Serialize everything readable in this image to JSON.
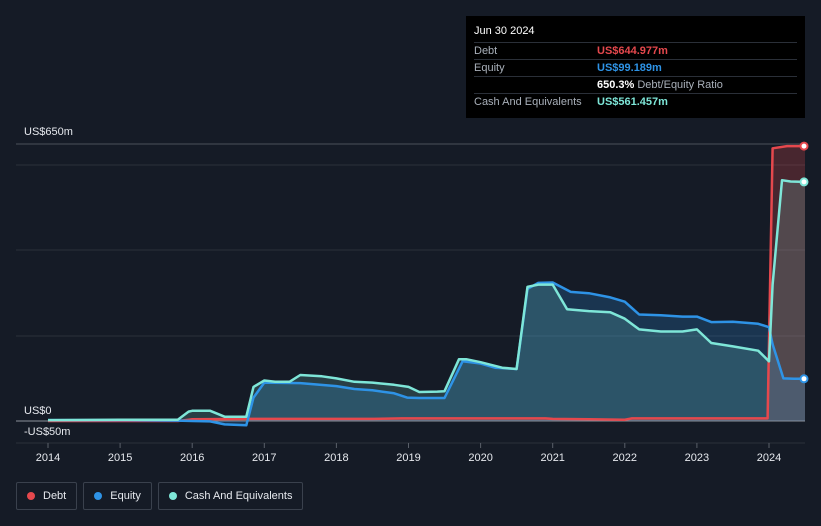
{
  "chart_data": {
    "type": "area",
    "title": "",
    "xlabel": "",
    "ylabel": "",
    "y_labels": {
      "top": "US$650m",
      "zero": "US$0",
      "bottom": "-US$50m"
    },
    "ylim": [
      -50,
      650
    ],
    "xlim": [
      2014.0,
      2024.5
    ],
    "x_ticks": [
      "2014",
      "2015",
      "2016",
      "2017",
      "2018",
      "2019",
      "2020",
      "2021",
      "2022",
      "2023",
      "2024"
    ],
    "grid": true,
    "series": [
      {
        "name": "Debt",
        "color": "#e5484d",
        "points": [
          [
            2014.0,
            0
          ],
          [
            2015.8,
            0
          ],
          [
            2015.95,
            3
          ],
          [
            2016.0,
            4
          ],
          [
            2016.8,
            5
          ],
          [
            2017.0,
            5
          ],
          [
            2018.0,
            5
          ],
          [
            2018.5,
            5
          ],
          [
            2018.9,
            6
          ],
          [
            2019.0,
            6
          ],
          [
            2020.0,
            6
          ],
          [
            2020.9,
            6
          ],
          [
            2021.0,
            5
          ],
          [
            2021.5,
            4
          ],
          [
            2022.0,
            3
          ],
          [
            2022.1,
            6
          ],
          [
            2022.5,
            6
          ],
          [
            2023.0,
            6
          ],
          [
            2023.5,
            6
          ],
          [
            2023.98,
            6
          ],
          [
            2024.05,
            640
          ],
          [
            2024.25,
            645
          ],
          [
            2024.5,
            645
          ]
        ]
      },
      {
        "name": "Equity",
        "color": "#2e93e6",
        "points": [
          [
            2014.0,
            2
          ],
          [
            2015.0,
            2
          ],
          [
            2015.8,
            1
          ],
          [
            2016.0,
            0
          ],
          [
            2016.25,
            -1
          ],
          [
            2016.45,
            -8
          ],
          [
            2016.75,
            -10
          ],
          [
            2016.85,
            55
          ],
          [
            2017.0,
            90
          ],
          [
            2017.5,
            89
          ],
          [
            2018.0,
            82
          ],
          [
            2018.25,
            75
          ],
          [
            2018.5,
            72
          ],
          [
            2018.8,
            65
          ],
          [
            2018.98,
            55
          ],
          [
            2019.15,
            54
          ],
          [
            2019.5,
            54
          ],
          [
            2019.75,
            140
          ],
          [
            2020.0,
            135
          ],
          [
            2020.2,
            125
          ],
          [
            2020.5,
            122
          ],
          [
            2020.65,
            310
          ],
          [
            2020.8,
            324
          ],
          [
            2021.0,
            325
          ],
          [
            2021.25,
            303
          ],
          [
            2021.5,
            300
          ],
          [
            2021.8,
            290
          ],
          [
            2022.0,
            280
          ],
          [
            2022.2,
            250
          ],
          [
            2022.5,
            248
          ],
          [
            2022.8,
            245
          ],
          [
            2023.0,
            245
          ],
          [
            2023.2,
            232
          ],
          [
            2023.5,
            233
          ],
          [
            2023.85,
            228
          ],
          [
            2024.0,
            220
          ],
          [
            2024.05,
            180
          ],
          [
            2024.2,
            100
          ],
          [
            2024.35,
            99
          ],
          [
            2024.5,
            99
          ]
        ]
      },
      {
        "name": "Cash And Equivalents",
        "color": "#7ee6d8",
        "points": [
          [
            2014.0,
            2
          ],
          [
            2015.0,
            3
          ],
          [
            2015.8,
            3
          ],
          [
            2015.95,
            22
          ],
          [
            2016.0,
            24
          ],
          [
            2016.25,
            24
          ],
          [
            2016.45,
            10
          ],
          [
            2016.75,
            10
          ],
          [
            2016.85,
            80
          ],
          [
            2017.0,
            95
          ],
          [
            2017.15,
            92
          ],
          [
            2017.35,
            92
          ],
          [
            2017.5,
            108
          ],
          [
            2017.8,
            105
          ],
          [
            2018.0,
            100
          ],
          [
            2018.25,
            92
          ],
          [
            2018.5,
            90
          ],
          [
            2018.8,
            85
          ],
          [
            2019.0,
            80
          ],
          [
            2019.15,
            68
          ],
          [
            2019.4,
            69
          ],
          [
            2019.5,
            70
          ],
          [
            2019.7,
            145
          ],
          [
            2019.8,
            145
          ],
          [
            2020.0,
            138
          ],
          [
            2020.3,
            125
          ],
          [
            2020.5,
            122
          ],
          [
            2020.65,
            315
          ],
          [
            2020.8,
            320
          ],
          [
            2021.0,
            320
          ],
          [
            2021.2,
            262
          ],
          [
            2021.5,
            258
          ],
          [
            2021.8,
            255
          ],
          [
            2022.0,
            240
          ],
          [
            2022.2,
            215
          ],
          [
            2022.5,
            210
          ],
          [
            2022.8,
            210
          ],
          [
            2023.0,
            215
          ],
          [
            2023.2,
            183
          ],
          [
            2023.5,
            175
          ],
          [
            2023.85,
            165
          ],
          [
            2024.0,
            140
          ],
          [
            2024.05,
            320
          ],
          [
            2024.18,
            565
          ],
          [
            2024.3,
            562
          ],
          [
            2024.5,
            561
          ]
        ]
      }
    ]
  },
  "tooltip": {
    "date": "Jun 30 2024",
    "debt_label": "Debt",
    "debt_value": "US$644.977m",
    "equity_label": "Equity",
    "equity_value": "US$99.189m",
    "ratio_value": "650.3%",
    "ratio_label": "Debt/Equity Ratio",
    "cash_label": "Cash And Equivalents",
    "cash_value": "US$561.457m"
  },
  "legend": {
    "debt": "Debt",
    "equity": "Equity",
    "cash": "Cash And Equivalents"
  },
  "colors": {
    "debt": "#e5484d",
    "equity": "#2e93e6",
    "cash": "#7ee6d8",
    "background": "#151b26"
  }
}
